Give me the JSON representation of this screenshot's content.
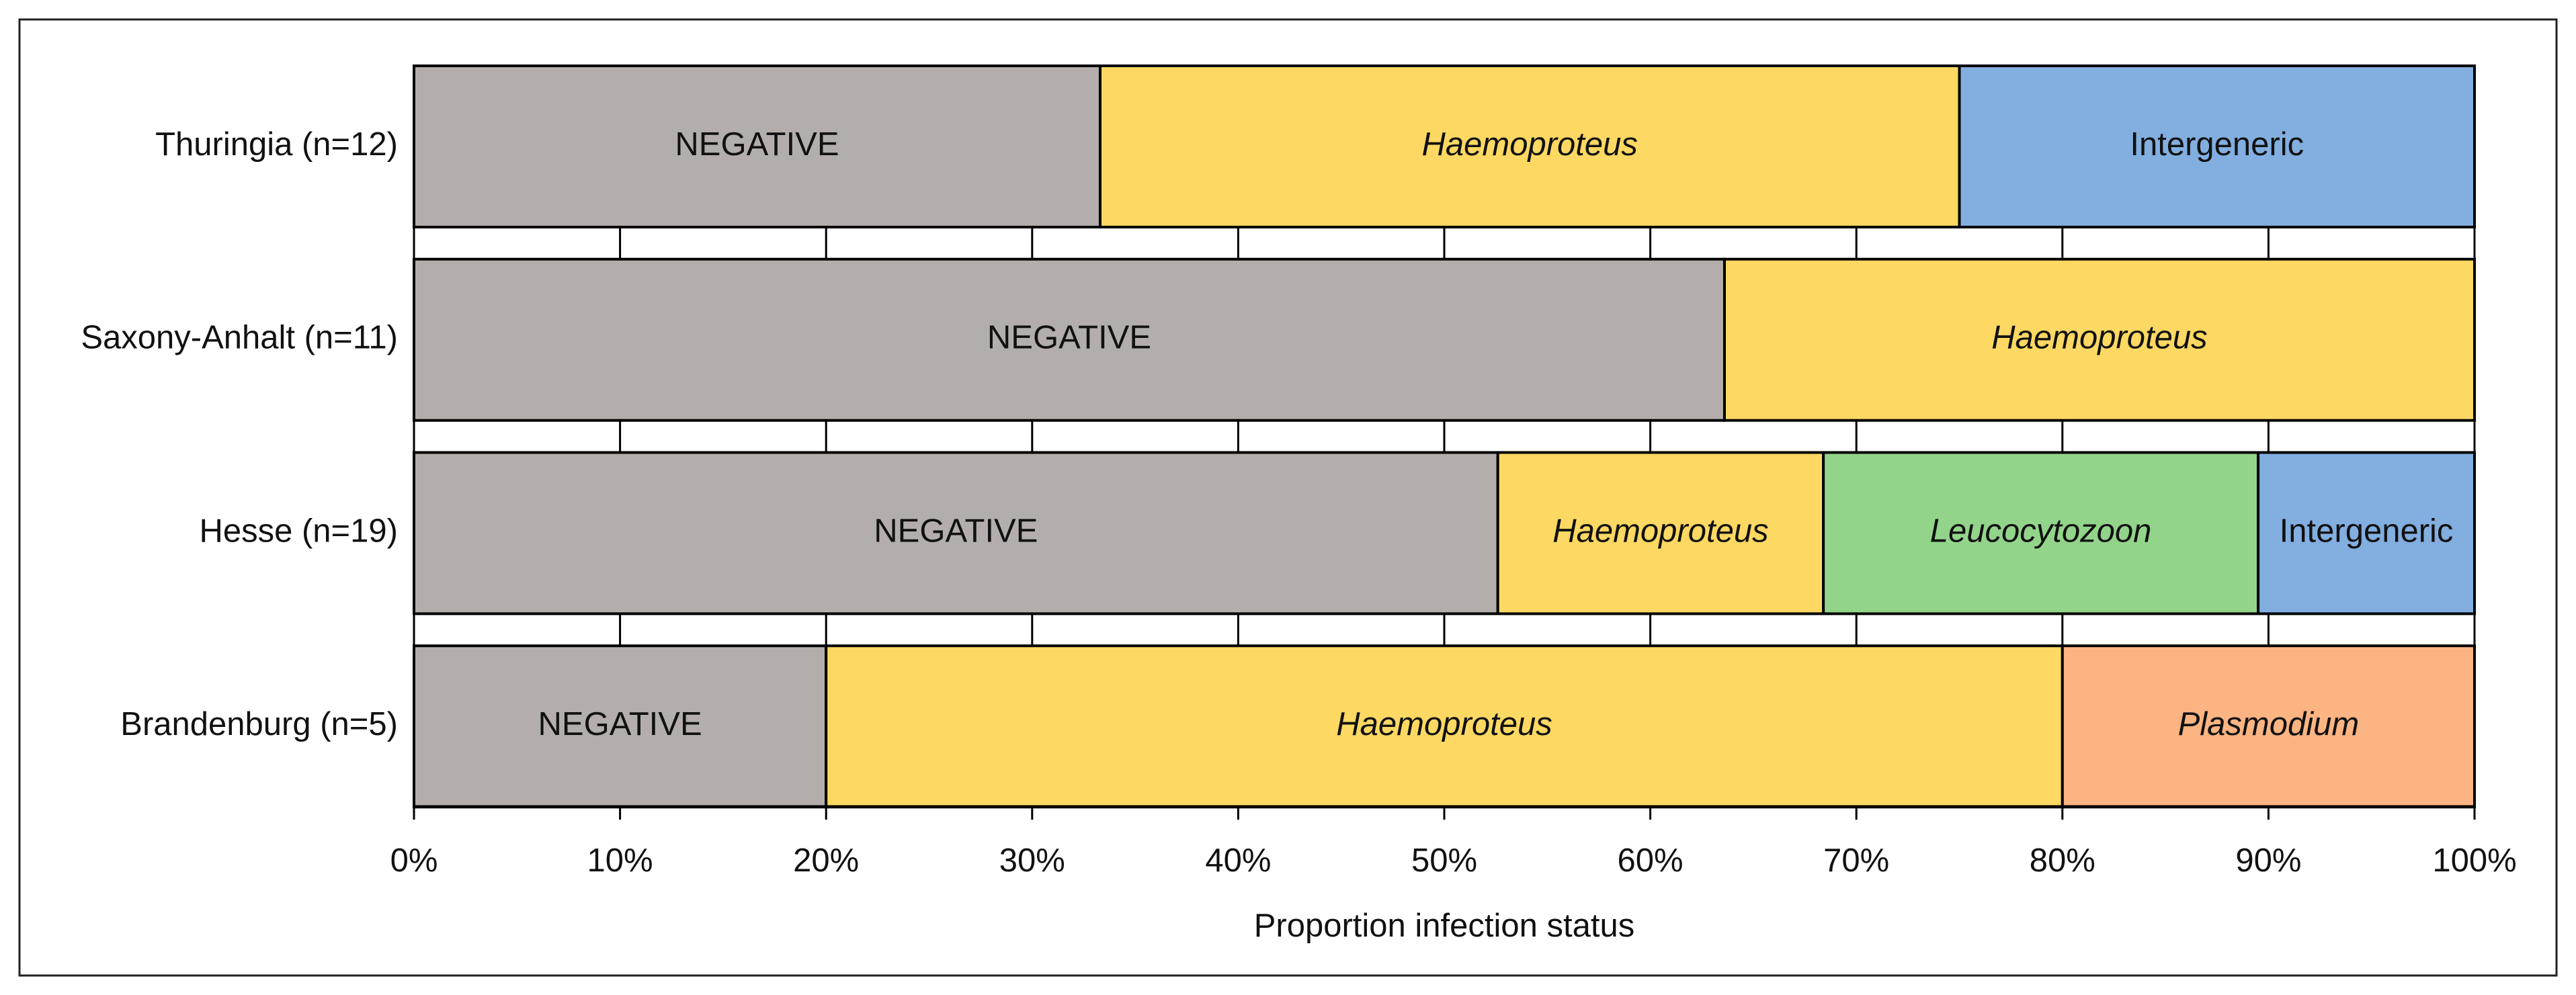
{
  "chart_data": {
    "type": "stacked-bar",
    "orientation": "horizontal",
    "x_label": "Proportion infection status",
    "categories": [
      "Thuringia (n=12)",
      "Saxony-Anhalt (n=11)",
      "Hesse (n=19)",
      "Brandenburg (n=5)"
    ],
    "series": [
      {
        "name": "NEGATIVE",
        "color": "#b3aeab",
        "italic": false,
        "values": [
          33.3,
          63.6,
          52.6,
          20
        ]
      },
      {
        "name": "Haemoproteus",
        "color": "#fdd862",
        "italic": true,
        "values": [
          41.7,
          36.4,
          15.8,
          60
        ]
      },
      {
        "name": "Leucocytozoon",
        "color": "#93d48b",
        "italic": true,
        "values": [
          null,
          null,
          21.1,
          null
        ]
      },
      {
        "name": "Intergeneric",
        "color": "#82aee0",
        "italic": false,
        "values": [
          25,
          null,
          10.5,
          null
        ]
      },
      {
        "name": "Plasmodium",
        "color": "#fbb482",
        "italic": true,
        "values": [
          null,
          null,
          null,
          20
        ]
      }
    ],
    "xlim": [
      0,
      100
    ],
    "xticks": [
      {
        "value": 0,
        "label": "0%"
      },
      {
        "value": 10,
        "label": "10%"
      },
      {
        "value": 20,
        "label": "20%"
      },
      {
        "value": 30,
        "label": "30%"
      },
      {
        "value": 40,
        "label": "40%"
      },
      {
        "value": 50,
        "label": "50%"
      },
      {
        "value": 60,
        "label": "60%"
      },
      {
        "value": 70,
        "label": "70%"
      },
      {
        "value": 80,
        "label": "80%"
      },
      {
        "value": 90,
        "label": "90%"
      },
      {
        "value": 100,
        "label": "100%"
      }
    ],
    "grid": true
  }
}
